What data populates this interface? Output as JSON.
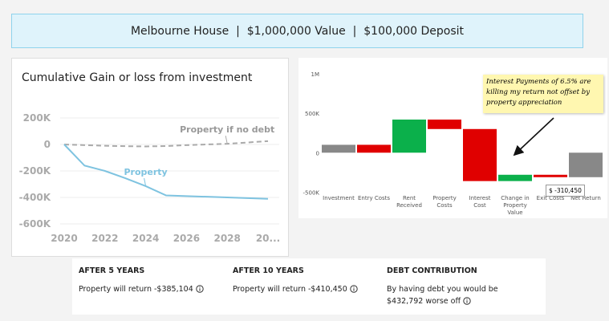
{
  "header": {
    "title": "Melbourne House  |  $1,000,000 Value  |  $100,000 Deposit"
  },
  "chart_data": [
    {
      "type": "line",
      "title": "Cumulative Gain or loss from investment",
      "x": [
        2020,
        2021,
        2022,
        2023,
        2024,
        2025,
        2026,
        2027,
        2028,
        2029,
        2030
      ],
      "series": [
        {
          "name": "Property if no debt",
          "color": "#aaaaaa",
          "dashed": true,
          "values": [
            0,
            -5000,
            -10000,
            -13000,
            -15000,
            -12000,
            -5000,
            0,
            5000,
            15000,
            25000
          ]
        },
        {
          "name": "Property",
          "color": "#7ec3e0",
          "dashed": false,
          "values": [
            0,
            -160000,
            -200000,
            -255000,
            -315000,
            -385104,
            -390000,
            -395000,
            -400000,
            -405000,
            -410450
          ]
        }
      ],
      "xlim": [
        2020,
        2030
      ],
      "ylim": [
        -600000,
        200000
      ],
      "xticks": [
        2020,
        2022,
        2024,
        2026,
        2028,
        {
          "value": 2030,
          "label": "20..."
        }
      ],
      "yticks": [
        {
          "value": 200000,
          "label": "200K"
        },
        0,
        {
          "value": -200000,
          "label": "-200K"
        },
        {
          "value": -400000,
          "label": "-400K"
        },
        {
          "value": -600000,
          "label": "-600K"
        }
      ],
      "grid": true
    },
    {
      "type": "waterfall",
      "categories": [
        "Investment",
        "Entry Costs",
        "Rent Received",
        "Property Costs",
        "Interest Cost",
        "Change in Property Value",
        "Exit Costs",
        "Net Return"
      ],
      "values": [
        100000,
        -100000,
        420000,
        -120000,
        -660000,
        80000,
        -30450,
        -310450
      ],
      "value_labels": [
        null,
        null,
        null,
        null,
        null,
        null,
        null,
        "$ -310,450"
      ],
      "is_total": [
        false,
        false,
        false,
        false,
        false,
        false,
        false,
        true
      ],
      "colors": [
        "#888888",
        "#e00000",
        "#0bb04b",
        "#e00000",
        "#e00000",
        "#0bb04b",
        "#e00000",
        "#888888"
      ],
      "ylim": [
        -500000,
        1000000
      ],
      "yticks": [
        {
          "value": 1000000,
          "label": "1M"
        },
        {
          "value": 500000,
          "label": "500K"
        },
        0,
        {
          "value": -500000,
          "label": "-500K"
        }
      ],
      "annotation": "Interest Payments of 6.5% are killing my return not offset by property appreciation",
      "grid": false
    }
  ],
  "cards": [
    {
      "title": "AFTER 5 YEARS",
      "text": "Property will return -$385,104"
    },
    {
      "title": "AFTER 10 YEARS",
      "text": "Property will return -$410,450"
    },
    {
      "title": "DEBT CONTRIBUTION",
      "text": "By having debt you would be $432,792 worse off"
    }
  ]
}
